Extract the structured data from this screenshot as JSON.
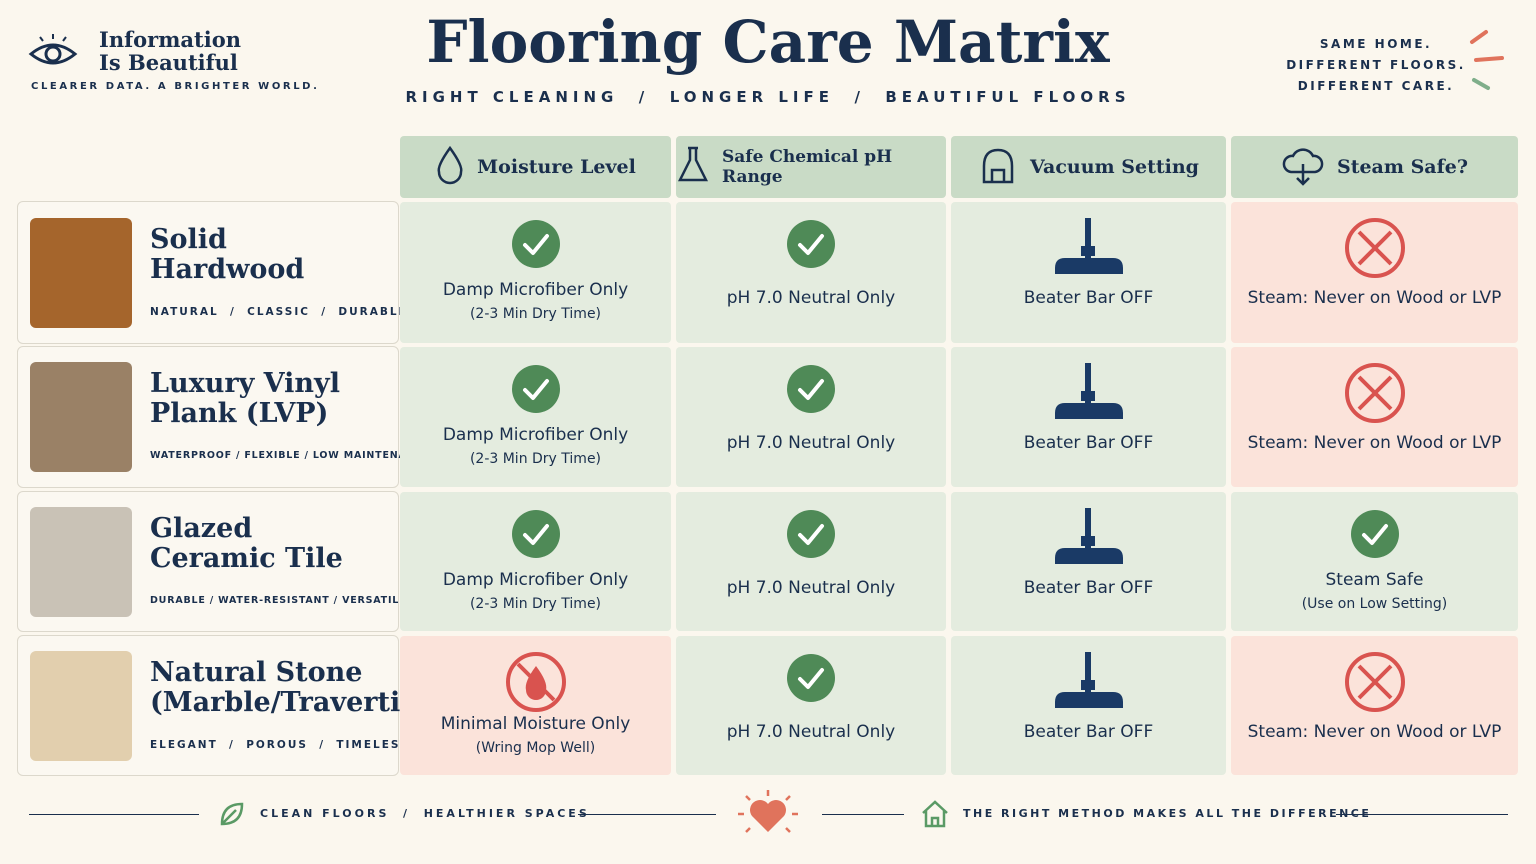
{
  "brand": {
    "name": [
      "Information",
      "Is Beautiful"
    ],
    "tagline": "CLEARER DATA. A BRIGHTER WORLD."
  },
  "header": {
    "title": "Flooring Care Matrix",
    "subtitle": "RIGHT CLEANING  /  LONGER LIFE  /  BEAUTIFUL FLOORS",
    "note": [
      "SAME HOME.",
      "DIFFERENT FLOORS.",
      "DIFFERENT CARE."
    ]
  },
  "table": {
    "columns": [
      "Moisture Level",
      "Safe Chemical pH Range",
      "Vacuum Setting",
      "Steam Safe?"
    ],
    "rows": [
      {
        "name": [
          "Solid",
          "Hardwood"
        ],
        "tags": "NATURAL  /  CLASSIC  /  DURABLE",
        "swatch": "#a5652c",
        "cells": [
          {
            "icon": "check",
            "tone": "green",
            "text": [
              "Damp Microfiber Only",
              "(2-3 Min Dry Time)"
            ]
          },
          {
            "icon": "check",
            "tone": "green",
            "text": [
              "pH 7.0 Neutral Only"
            ]
          },
          {
            "icon": "vacuum",
            "tone": "green",
            "text": [
              "Beater Bar OFF"
            ]
          },
          {
            "icon": "cross",
            "tone": "red",
            "text": [
              "Steam: Never on Wood or LVP"
            ]
          }
        ]
      },
      {
        "name": [
          "Luxury Vinyl",
          "Plank (LVP)"
        ],
        "tags": "WATERPROOF / FLEXIBLE / LOW MAINTENANCE",
        "swatch": "#9a8166",
        "cells": [
          {
            "icon": "check",
            "tone": "green",
            "text": [
              "Damp Microfiber Only",
              "(2-3 Min Dry Time)"
            ]
          },
          {
            "icon": "check",
            "tone": "green",
            "text": [
              "pH 7.0 Neutral Only"
            ]
          },
          {
            "icon": "vacuum",
            "tone": "green",
            "text": [
              "Beater Bar OFF"
            ]
          },
          {
            "icon": "cross",
            "tone": "red",
            "text": [
              "Steam: Never on Wood or LVP"
            ]
          }
        ]
      },
      {
        "name": [
          "Glazed",
          "Ceramic Tile"
        ],
        "tags": "DURABLE / WATER-RESISTANT / VERSATILE",
        "swatch": "#c9c2b6",
        "cells": [
          {
            "icon": "check",
            "tone": "green",
            "text": [
              "Damp Microfiber Only",
              "(2-3 Min Dry Time)"
            ]
          },
          {
            "icon": "check",
            "tone": "green",
            "text": [
              "pH 7.0 Neutral Only"
            ]
          },
          {
            "icon": "vacuum",
            "tone": "green",
            "text": [
              "Beater Bar OFF"
            ]
          },
          {
            "icon": "check",
            "tone": "green",
            "text": [
              "Steam Safe",
              "(Use on Low Setting)"
            ]
          }
        ]
      },
      {
        "name": [
          "Natural Stone",
          "(Marble/Travertine)"
        ],
        "tags": "ELEGANT  /  POROUS  /  TIMELESS",
        "swatch": "#e2cfae",
        "cells": [
          {
            "icon": "nodrop",
            "tone": "red",
            "text": [
              "Minimal Moisture Only",
              "(Wring Mop Well)"
            ]
          },
          {
            "icon": "check",
            "tone": "green",
            "text": [
              "pH 7.0 Neutral Only"
            ]
          },
          {
            "icon": "vacuum",
            "tone": "green",
            "text": [
              "Beater Bar OFF"
            ]
          },
          {
            "icon": "cross",
            "tone": "red",
            "text": [
              "Steam: Never on Wood or LVP"
            ]
          }
        ]
      }
    ]
  },
  "footer": {
    "left": "CLEAN FLOORS  /  HEALTHIER SPACES",
    "right": "THE RIGHT METHOD MAKES ALL THE DIFFERENCE"
  }
}
